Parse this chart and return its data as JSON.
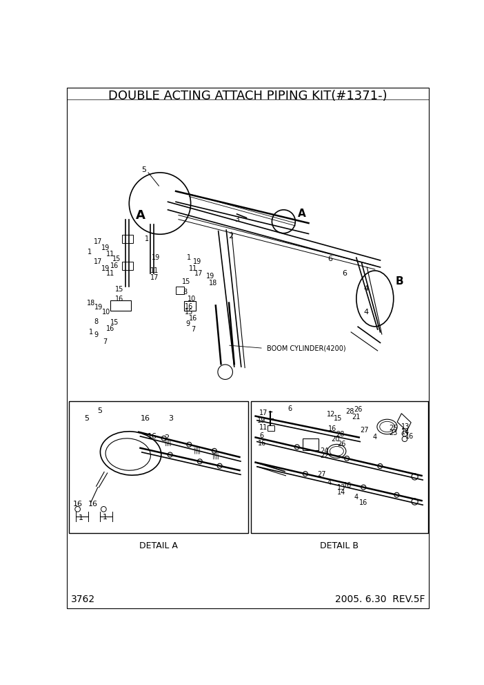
{
  "title": "DOUBLE ACTING ATTACH PIPING KIT(#1371-)",
  "page_number": "3762",
  "date_rev": "2005. 6.30  REV.5F",
  "background_color": "#ffffff",
  "text_color": "#000000",
  "detail_a_label": "DETAIL A",
  "detail_b_label": "DETAIL B",
  "boom_cylinder_label": "BOOM CYLINDER(4200)",
  "fig_width": 7.02,
  "fig_height": 9.92,
  "dpi": 100,
  "title_fontsize": 13,
  "footer_fontsize": 10,
  "label_fontsize": 8,
  "small_fontsize": 7
}
